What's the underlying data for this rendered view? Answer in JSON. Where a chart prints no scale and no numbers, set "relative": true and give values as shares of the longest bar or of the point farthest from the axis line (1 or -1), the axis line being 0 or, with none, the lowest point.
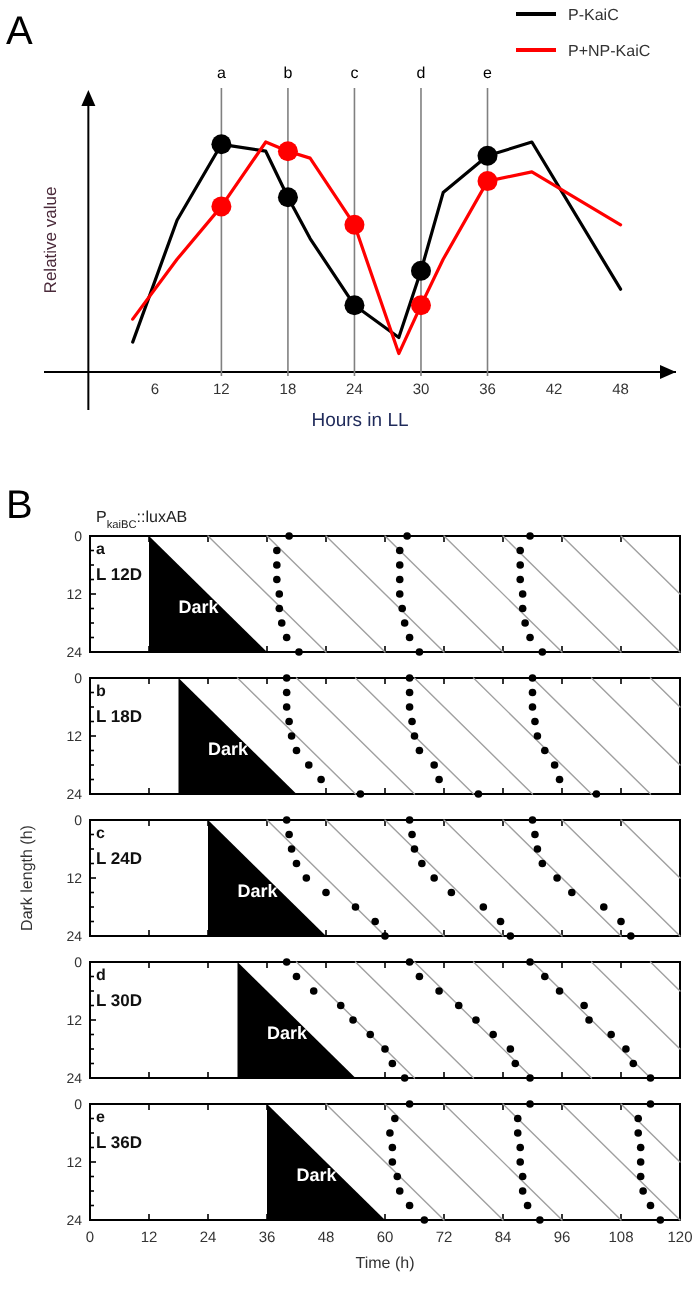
{
  "chart_data": [
    {
      "type": "line",
      "title": "A",
      "xlabel": "Hours in LL",
      "ylabel": "Relative value",
      "relative": true,
      "xlim": [
        -4,
        53
      ],
      "xticks": [
        6,
        12,
        18,
        24,
        30,
        36,
        42,
        48
      ],
      "legend": "top right",
      "series": [
        {
          "name": "P-KaiC",
          "color": "#000000",
          "x": [
            4,
            8,
            12,
            16,
            18,
            20,
            24,
            28,
            30,
            32,
            36,
            40,
            48
          ],
          "values": [
            0.13,
            0.66,
            0.99,
            0.96,
            0.76,
            0.58,
            0.29,
            0.15,
            0.44,
            0.78,
            0.94,
            1.0,
            0.36
          ]
        },
        {
          "name": "P+NP-KaiC",
          "color": "#ff0000",
          "x": [
            4,
            8,
            12,
            16,
            18,
            20,
            24,
            28,
            30,
            32,
            36,
            40,
            48
          ],
          "values": [
            0.23,
            0.49,
            0.72,
            1.0,
            0.96,
            0.93,
            0.64,
            0.08,
            0.29,
            0.49,
            0.83,
            0.87,
            0.64
          ]
        },
        {
          "type": "scatter",
          "marker": "circle",
          "color": "#000000",
          "x": [
            12,
            18,
            24,
            30,
            36
          ],
          "values": [
            0.99,
            0.76,
            0.29,
            0.44,
            0.94
          ]
        },
        {
          "type": "scatter",
          "marker": "circle",
          "color": "#ff0000",
          "x": [
            12,
            18,
            24,
            30,
            36
          ],
          "values": [
            0.72,
            0.96,
            0.64,
            0.29,
            0.83
          ]
        }
      ],
      "ref_lines": [
        {
          "axis": "x",
          "value": 12,
          "label": "a",
          "color": "#808080"
        },
        {
          "axis": "x",
          "value": 18,
          "label": "b",
          "color": "#808080"
        },
        {
          "axis": "x",
          "value": 24,
          "label": "c",
          "color": "#808080"
        },
        {
          "axis": "x",
          "value": 30,
          "label": "d",
          "color": "#808080"
        },
        {
          "axis": "x",
          "value": 36,
          "label": "e",
          "color": "#808080"
        }
      ]
    },
    {
      "type": "scatter",
      "title": "B",
      "subtitle": "P$_{kaiBC}$::luxAB",
      "annotations": [
        "a",
        "L 12D"
      ],
      "tick_labels": "y",
      "xlim": [
        0,
        120
      ],
      "xticks": [
        0,
        12,
        24,
        36,
        48,
        60,
        72,
        84,
        96,
        108,
        120
      ],
      "ylim": [
        24,
        0
      ],
      "yticks": [
        0,
        {
          "value": 3,
          "label": null
        },
        {
          "value": 6,
          "label": null
        },
        {
          "value": 9,
          "label": null
        },
        12,
        {
          "value": 15,
          "label": null
        },
        {
          "value": 18,
          "label": null
        },
        {
          "value": 21,
          "label": null
        },
        24
      ],
      "series": [
        {
          "type": "area",
          "name": "Dark",
          "color": "#000000",
          "x": [
            12,
            36
          ],
          "values": [
            0,
            24
          ]
        },
        {
          "type": "line",
          "color": "#a0a0a0",
          "x": [
            24,
            48
          ],
          "values": [
            0,
            24
          ]
        },
        {
          "type": "line",
          "color": "#a0a0a0",
          "x": [
            36,
            60
          ],
          "values": [
            0,
            24
          ]
        },
        {
          "type": "line",
          "color": "#a0a0a0",
          "x": [
            48,
            72
          ],
          "values": [
            0,
            24
          ]
        },
        {
          "type": "line",
          "color": "#a0a0a0",
          "x": [
            60,
            84
          ],
          "values": [
            0,
            24
          ]
        },
        {
          "type": "line",
          "color": "#a0a0a0",
          "x": [
            72,
            96
          ],
          "values": [
            0,
            24
          ]
        },
        {
          "type": "line",
          "color": "#a0a0a0",
          "x": [
            84,
            108
          ],
          "values": [
            0,
            24
          ]
        },
        {
          "type": "line",
          "color": "#a0a0a0",
          "x": [
            96,
            120
          ],
          "values": [
            0,
            24
          ]
        },
        {
          "type": "line",
          "color": "#a0a0a0",
          "x": [
            108,
            120
          ],
          "values": [
            0,
            12
          ]
        },
        {
          "color": "#000000",
          "x": [
            40.5,
            38,
            38,
            38,
            38.5,
            38.5,
            39,
            40,
            42.5,
            64.5,
            63,
            63,
            63,
            63,
            63.5,
            64,
            65,
            67,
            89.5,
            87.5,
            87.5,
            87.5,
            88,
            88,
            88.5,
            89.5,
            92
          ],
          "values": [
            0,
            3,
            6,
            9,
            12,
            15,
            18,
            21,
            24,
            0,
            3,
            6,
            9,
            12,
            15,
            18,
            21,
            24,
            0,
            3,
            6,
            9,
            12,
            15,
            18,
            21,
            24
          ]
        }
      ]
    },
    {
      "type": "scatter",
      "annotations": [
        "b",
        "L 18D"
      ],
      "tick_labels": "y",
      "xlim": [
        0,
        120
      ],
      "xticks": [
        0,
        12,
        24,
        36,
        48,
        60,
        72,
        84,
        96,
        108,
        120
      ],
      "ylim": [
        24,
        0
      ],
      "yticks": [
        0,
        {
          "value": 3,
          "label": null
        },
        {
          "value": 6,
          "label": null
        },
        {
          "value": 9,
          "label": null
        },
        12,
        {
          "value": 15,
          "label": null
        },
        {
          "value": 18,
          "label": null
        },
        {
          "value": 21,
          "label": null
        },
        24
      ],
      "series": [
        {
          "type": "area",
          "name": "Dark",
          "color": "#000000",
          "x": [
            18,
            42
          ],
          "values": [
            0,
            24
          ]
        },
        {
          "type": "line",
          "color": "#a0a0a0",
          "x": [
            30,
            54
          ],
          "values": [
            0,
            24
          ]
        },
        {
          "type": "line",
          "color": "#a0a0a0",
          "x": [
            42,
            66
          ],
          "values": [
            0,
            24
          ]
        },
        {
          "type": "line",
          "color": "#a0a0a0",
          "x": [
            54,
            78
          ],
          "values": [
            0,
            24
          ]
        },
        {
          "type": "line",
          "color": "#a0a0a0",
          "x": [
            66,
            90
          ],
          "values": [
            0,
            24
          ]
        },
        {
          "type": "line",
          "color": "#a0a0a0",
          "x": [
            78,
            102
          ],
          "values": [
            0,
            24
          ]
        },
        {
          "type": "line",
          "color": "#a0a0a0",
          "x": [
            90,
            114
          ],
          "values": [
            0,
            24
          ]
        },
        {
          "type": "line",
          "color": "#a0a0a0",
          "x": [
            102,
            120
          ],
          "values": [
            0,
            18
          ]
        },
        {
          "type": "line",
          "color": "#a0a0a0",
          "x": [
            114,
            120
          ],
          "values": [
            0,
            6
          ]
        },
        {
          "color": "#000000",
          "x": [
            40,
            40,
            40,
            40.5,
            41,
            42,
            44.5,
            47,
            55,
            65,
            65,
            65,
            65.5,
            66,
            67,
            70,
            71,
            79,
            90,
            90,
            90,
            90.5,
            91,
            92.5,
            94.5,
            95.5,
            103
          ],
          "values": [
            0,
            3,
            6,
            9,
            12,
            15,
            18,
            21,
            24,
            0,
            3,
            6,
            9,
            12,
            15,
            18,
            21,
            24,
            0,
            3,
            6,
            9,
            12,
            15,
            18,
            21,
            24
          ]
        }
      ]
    },
    {
      "type": "scatter",
      "ylabel": "Dark length (h)",
      "annotations": [
        "c",
        "L 24D"
      ],
      "tick_labels": "y",
      "xlim": [
        0,
        120
      ],
      "xticks": [
        0,
        12,
        24,
        36,
        48,
        60,
        72,
        84,
        96,
        108,
        120
      ],
      "ylim": [
        24,
        0
      ],
      "yticks": [
        0,
        {
          "value": 3,
          "label": null
        },
        {
          "value": 6,
          "label": null
        },
        {
          "value": 9,
          "label": null
        },
        12,
        {
          "value": 15,
          "label": null
        },
        {
          "value": 18,
          "label": null
        },
        {
          "value": 21,
          "label": null
        },
        24
      ],
      "series": [
        {
          "type": "area",
          "name": "Dark",
          "color": "#000000",
          "x": [
            24,
            48
          ],
          "values": [
            0,
            24
          ]
        },
        {
          "type": "line",
          "color": "#a0a0a0",
          "x": [
            36,
            60
          ],
          "values": [
            0,
            24
          ]
        },
        {
          "type": "line",
          "color": "#a0a0a0",
          "x": [
            48,
            72
          ],
          "values": [
            0,
            24
          ]
        },
        {
          "type": "line",
          "color": "#a0a0a0",
          "x": [
            60,
            84
          ],
          "values": [
            0,
            24
          ]
        },
        {
          "type": "line",
          "color": "#a0a0a0",
          "x": [
            72,
            96
          ],
          "values": [
            0,
            24
          ]
        },
        {
          "type": "line",
          "color": "#a0a0a0",
          "x": [
            84,
            108
          ],
          "values": [
            0,
            24
          ]
        },
        {
          "type": "line",
          "color": "#a0a0a0",
          "x": [
            96,
            120
          ],
          "values": [
            0,
            24
          ]
        },
        {
          "type": "line",
          "color": "#a0a0a0",
          "x": [
            108,
            120
          ],
          "values": [
            0,
            12
          ]
        },
        {
          "color": "#000000",
          "x": [
            40,
            40.5,
            41,
            42,
            44,
            48,
            54,
            58,
            60,
            65,
            65.5,
            66,
            67.5,
            70,
            73.5,
            80,
            83.5,
            85.5,
            90,
            90.5,
            91,
            92,
            95,
            98,
            104.5,
            108,
            110
          ],
          "values": [
            0,
            3,
            6,
            9,
            12,
            15,
            18,
            21,
            24,
            0,
            3,
            6,
            9,
            12,
            15,
            18,
            21,
            24,
            0,
            3,
            6,
            9,
            12,
            15,
            18,
            21,
            24
          ]
        }
      ]
    },
    {
      "type": "scatter",
      "annotations": [
        "d",
        "L 30D"
      ],
      "tick_labels": "y",
      "xlim": [
        0,
        120
      ],
      "xticks": [
        0,
        12,
        24,
        36,
        48,
        60,
        72,
        84,
        96,
        108,
        120
      ],
      "ylim": [
        24,
        0
      ],
      "yticks": [
        0,
        {
          "value": 3,
          "label": null
        },
        {
          "value": 6,
          "label": null
        },
        {
          "value": 9,
          "label": null
        },
        12,
        {
          "value": 15,
          "label": null
        },
        {
          "value": 18,
          "label": null
        },
        {
          "value": 21,
          "label": null
        },
        24
      ],
      "series": [
        {
          "type": "area",
          "name": "Dark",
          "color": "#000000",
          "x": [
            30,
            54
          ],
          "values": [
            0,
            24
          ]
        },
        {
          "type": "line",
          "color": "#a0a0a0",
          "x": [
            42,
            66
          ],
          "values": [
            0,
            24
          ]
        },
        {
          "type": "line",
          "color": "#a0a0a0",
          "x": [
            54,
            78
          ],
          "values": [
            0,
            24
          ]
        },
        {
          "type": "line",
          "color": "#a0a0a0",
          "x": [
            66,
            90
          ],
          "values": [
            0,
            24
          ]
        },
        {
          "type": "line",
          "color": "#a0a0a0",
          "x": [
            78,
            102
          ],
          "values": [
            0,
            24
          ]
        },
        {
          "type": "line",
          "color": "#a0a0a0",
          "x": [
            90,
            114
          ],
          "values": [
            0,
            24
          ]
        },
        {
          "type": "line",
          "color": "#a0a0a0",
          "x": [
            102,
            120
          ],
          "values": [
            0,
            18
          ]
        },
        {
          "type": "line",
          "color": "#a0a0a0",
          "x": [
            114,
            120
          ],
          "values": [
            0,
            6
          ]
        },
        {
          "color": "#000000",
          "x": [
            40,
            42,
            45.5,
            51,
            53.5,
            57,
            60,
            61.5,
            64,
            65,
            67,
            71,
            75,
            78.5,
            82,
            85.5,
            86.5,
            89.5,
            89.5,
            92.5,
            95.5,
            100.5,
            101.5,
            106,
            109,
            110.5,
            114
          ],
          "values": [
            0,
            3,
            6,
            9,
            12,
            15,
            18,
            21,
            24,
            0,
            3,
            6,
            9,
            12,
            15,
            18,
            21,
            24,
            0,
            3,
            6,
            9,
            12,
            15,
            18,
            21,
            24
          ]
        }
      ]
    },
    {
      "type": "scatter",
      "xlabel": "Time (h)",
      "annotations": [
        "e",
        "L 36D"
      ],
      "xlim": [
        0,
        120
      ],
      "xticks": [
        0,
        12,
        24,
        36,
        48,
        60,
        72,
        84,
        96,
        108,
        120
      ],
      "ylim": [
        24,
        0
      ],
      "yticks": [
        0,
        {
          "value": 3,
          "label": null
        },
        {
          "value": 6,
          "label": null
        },
        {
          "value": 9,
          "label": null
        },
        12,
        {
          "value": 15,
          "label": null
        },
        {
          "value": 18,
          "label": null
        },
        {
          "value": 21,
          "label": null
        },
        24
      ],
      "series": [
        {
          "type": "area",
          "name": "Dark",
          "color": "#000000",
          "x": [
            36,
            60
          ],
          "values": [
            0,
            24
          ]
        },
        {
          "type": "line",
          "color": "#a0a0a0",
          "x": [
            48,
            72
          ],
          "values": [
            0,
            24
          ]
        },
        {
          "type": "line",
          "color": "#a0a0a0",
          "x": [
            60,
            84
          ],
          "values": [
            0,
            24
          ]
        },
        {
          "type": "line",
          "color": "#a0a0a0",
          "x": [
            72,
            96
          ],
          "values": [
            0,
            24
          ]
        },
        {
          "type": "line",
          "color": "#a0a0a0",
          "x": [
            84,
            108
          ],
          "values": [
            0,
            24
          ]
        },
        {
          "type": "line",
          "color": "#a0a0a0",
          "x": [
            96,
            120
          ],
          "values": [
            0,
            24
          ]
        },
        {
          "type": "line",
          "color": "#a0a0a0",
          "x": [
            108,
            120
          ],
          "values": [
            0,
            12
          ]
        },
        {
          "color": "#000000",
          "x": [
            65,
            62,
            61,
            61.5,
            61.5,
            62.5,
            63,
            65,
            68,
            89.5,
            87,
            87,
            87.5,
            87.5,
            88,
            88,
            89,
            91.5,
            114,
            111.5,
            111.5,
            112,
            112,
            112,
            112.5,
            114,
            116
          ],
          "values": [
            0,
            3,
            6,
            9,
            12,
            15,
            18,
            21,
            24,
            0,
            3,
            6,
            9,
            12,
            15,
            18,
            21,
            24,
            0,
            3,
            6,
            9,
            12,
            15,
            18,
            21,
            24
          ]
        }
      ]
    }
  ]
}
